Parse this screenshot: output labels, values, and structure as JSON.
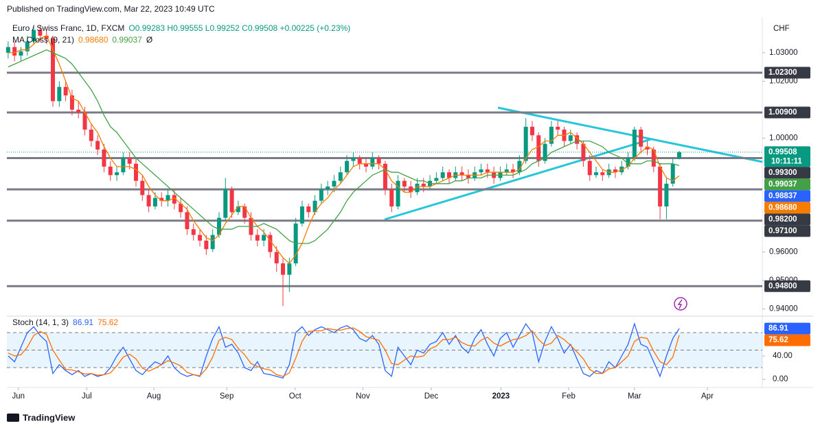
{
  "header": "Published on TradingView.com, Mar 22, 2023 10:49 UTC",
  "footer": "TradingView",
  "chart_data": [
    {
      "type": "candlestick",
      "title": "Euro / Swiss Franc, 1D, FXCM",
      "ohlc_text": "O0.99283 H0.99555 L0.99252 C0.99508 +0.00225 (+0.23%)",
      "axis_unit": "CHF",
      "overlay_title": "MA Cross (9, 21)",
      "overlay_icon": "Ø",
      "countdown": "10:11:11",
      "up_color": "#089981",
      "down_color": "#f23645",
      "xlim": [
        -0.2,
        118
      ],
      "ylim": [
        0.9377,
        1.0425
      ],
      "yticks": [
        {
          "value": 1.03,
          "label": "1.03000"
        },
        {
          "value": 1.02,
          "label": "1.02000"
        },
        {
          "value": 1.0,
          "label": "1.00000"
        },
        {
          "value": 0.96,
          "label": "0.96000"
        },
        {
          "value": 0.95,
          "label": "0.95000"
        },
        {
          "value": 0.94,
          "label": "0.94000"
        }
      ],
      "xticks": [
        {
          "value": 1.6,
          "label": "Jun"
        },
        {
          "value": 12.3,
          "label": "Jul"
        },
        {
          "value": 22.8,
          "label": "Aug"
        },
        {
          "value": 34.2,
          "label": "Sep"
        },
        {
          "value": 44.9,
          "label": "Oct"
        },
        {
          "value": 55.5,
          "label": "Nov"
        },
        {
          "value": 66.2,
          "label": "Dec"
        },
        {
          "value": 77.1,
          "label": "2023"
        },
        {
          "value": 87.7,
          "label": "Feb"
        },
        {
          "value": 98,
          "label": "Mar"
        },
        {
          "value": 109.4,
          "label": "Apr"
        }
      ],
      "levels": [
        {
          "value": 1.023,
          "label": "1.02300"
        },
        {
          "value": 1.009,
          "label": "1.00900"
        },
        {
          "value": 0.993,
          "label": "0.99300"
        },
        {
          "value": 0.982,
          "label": "0.98200"
        },
        {
          "value": 0.971,
          "label": "0.97100"
        },
        {
          "value": 0.948,
          "label": "0.94800"
        }
      ],
      "marker": {
        "value": 0.98837,
        "color": "#2962ff"
      },
      "ohlc": [
        [
          1.03,
          1.034,
          1.028,
          1.032
        ],
        [
          1.032,
          1.034,
          1.027,
          1.029
        ],
        [
          1.029,
          1.032,
          1.027,
          1.0305
        ],
        [
          1.0305,
          1.036,
          1.029,
          1.034
        ],
        [
          1.034,
          1.0395,
          1.033,
          1.038
        ],
        [
          1.038,
          1.0395,
          1.034,
          1.036
        ],
        [
          1.036,
          1.038,
          1.033,
          1.035
        ],
        [
          1.035,
          1.036,
          1.011,
          1.013
        ],
        [
          1.013,
          1.02,
          1.011,
          1.018
        ],
        [
          1.018,
          1.02,
          1.013,
          1.015
        ],
        [
          1.015,
          1.017,
          1.008,
          1.01
        ],
        [
          1.01,
          1.013,
          1.007,
          1.009
        ],
        [
          1.009,
          1.011,
          1.001,
          1.003
        ],
        [
          1.003,
          1.005,
          0.997,
          0.999
        ],
        [
          0.999,
          1.001,
          0.994,
          0.996
        ],
        [
          0.996,
          0.998,
          0.988,
          0.99
        ],
        [
          0.99,
          0.992,
          0.985,
          0.987
        ],
        [
          0.987,
          0.99,
          0.985,
          0.988
        ],
        [
          0.988,
          0.995,
          0.987,
          0.993
        ],
        [
          0.993,
          0.995,
          0.989,
          0.991
        ],
        [
          0.991,
          0.993,
          0.983,
          0.985
        ],
        [
          0.985,
          0.987,
          0.978,
          0.98
        ],
        [
          0.98,
          0.982,
          0.974,
          0.976
        ],
        [
          0.976,
          0.981,
          0.975,
          0.979
        ],
        [
          0.979,
          0.981,
          0.976,
          0.978
        ],
        [
          0.978,
          0.982,
          0.976,
          0.98
        ],
        [
          0.98,
          0.982,
          0.975,
          0.977
        ],
        [
          0.977,
          0.979,
          0.972,
          0.974
        ],
        [
          0.974,
          0.976,
          0.966,
          0.968
        ],
        [
          0.968,
          0.97,
          0.964,
          0.966
        ],
        [
          0.966,
          0.968,
          0.962,
          0.964
        ],
        [
          0.964,
          0.966,
          0.959,
          0.961
        ],
        [
          0.961,
          0.968,
          0.96,
          0.966
        ],
        [
          0.966,
          0.974,
          0.965,
          0.972
        ],
        [
          0.972,
          0.986,
          0.971,
          0.982
        ],
        [
          0.982,
          0.983,
          0.972,
          0.974
        ],
        [
          0.974,
          0.978,
          0.973,
          0.976
        ],
        [
          0.976,
          0.977,
          0.97,
          0.972
        ],
        [
          0.972,
          0.974,
          0.964,
          0.966
        ],
        [
          0.966,
          0.968,
          0.962,
          0.964
        ],
        [
          0.964,
          0.968,
          0.962,
          0.966
        ],
        [
          0.966,
          0.967,
          0.958,
          0.96
        ],
        [
          0.96,
          0.962,
          0.953,
          0.956
        ],
        [
          0.956,
          0.958,
          0.941,
          0.952
        ],
        [
          0.952,
          0.958,
          0.946,
          0.956
        ],
        [
          0.956,
          0.972,
          0.955,
          0.97
        ],
        [
          0.97,
          0.978,
          0.969,
          0.976
        ],
        [
          0.976,
          0.977,
          0.972,
          0.974
        ],
        [
          0.974,
          0.98,
          0.973,
          0.978
        ],
        [
          0.978,
          0.984,
          0.977,
          0.982
        ],
        [
          0.982,
          0.985,
          0.98,
          0.983
        ],
        [
          0.983,
          0.987,
          0.981,
          0.985
        ],
        [
          0.985,
          0.99,
          0.984,
          0.988
        ],
        [
          0.988,
          0.994,
          0.987,
          0.992
        ],
        [
          0.992,
          0.995,
          0.99,
          0.993
        ],
        [
          0.993,
          0.994,
          0.989,
          0.991
        ],
        [
          0.991,
          0.993,
          0.988,
          0.99
        ],
        [
          0.99,
          0.995,
          0.989,
          0.993
        ],
        [
          0.993,
          0.994,
          0.989,
          0.991
        ],
        [
          0.991,
          0.992,
          0.98,
          0.982
        ],
        [
          0.982,
          0.984,
          0.974,
          0.976
        ],
        [
          0.976,
          0.987,
          0.975,
          0.985
        ],
        [
          0.985,
          0.986,
          0.981,
          0.983
        ],
        [
          0.983,
          0.985,
          0.979,
          0.981
        ],
        [
          0.981,
          0.986,
          0.98,
          0.984
        ],
        [
          0.984,
          0.986,
          0.981,
          0.983
        ],
        [
          0.983,
          0.987,
          0.982,
          0.985
        ],
        [
          0.985,
          0.988,
          0.984,
          0.986
        ],
        [
          0.986,
          0.99,
          0.985,
          0.988
        ],
        [
          0.988,
          0.989,
          0.984,
          0.986
        ],
        [
          0.986,
          0.99,
          0.985,
          0.988
        ],
        [
          0.988,
          0.99,
          0.985,
          0.987
        ],
        [
          0.987,
          0.989,
          0.984,
          0.986
        ],
        [
          0.986,
          0.99,
          0.985,
          0.988
        ],
        [
          0.988,
          0.991,
          0.987,
          0.989
        ],
        [
          0.989,
          0.991,
          0.986,
          0.988
        ],
        [
          0.988,
          0.99,
          0.984,
          0.986
        ],
        [
          0.986,
          0.99,
          0.985,
          0.988
        ],
        [
          0.988,
          0.991,
          0.987,
          0.989
        ],
        [
          0.989,
          0.991,
          0.986,
          0.988
        ],
        [
          0.988,
          0.994,
          0.987,
          0.992
        ],
        [
          0.992,
          1.007,
          0.991,
          1.004
        ],
        [
          1.004,
          1.006,
          0.999,
          1.001
        ],
        [
          1.001,
          1.002,
          0.99,
          0.992
        ],
        [
          0.992,
          1.0,
          0.991,
          0.998
        ],
        [
          0.998,
          1.006,
          0.997,
          1.004
        ],
        [
          1.004,
          1.006,
          1.001,
          1.003
        ],
        [
          1.003,
          1.004,
          0.997,
          0.999
        ],
        [
          0.999,
          1.003,
          0.998,
          1.001
        ],
        [
          1.001,
          1.002,
          0.996,
          0.998
        ],
        [
          0.998,
          0.999,
          0.99,
          0.992
        ],
        [
          0.992,
          0.994,
          0.985,
          0.987
        ],
        [
          0.987,
          0.99,
          0.986,
          0.988
        ],
        [
          0.988,
          0.989,
          0.985,
          0.987
        ],
        [
          0.987,
          0.991,
          0.986,
          0.989
        ],
        [
          0.989,
          0.99,
          0.986,
          0.988
        ],
        [
          0.988,
          0.992,
          0.987,
          0.99
        ],
        [
          0.99,
          0.995,
          0.989,
          0.993
        ],
        [
          0.993,
          1.004,
          0.992,
          1.003
        ],
        [
          1.003,
          1.004,
          0.995,
          0.997
        ],
        [
          0.997,
          0.999,
          0.994,
          0.996
        ],
        [
          0.996,
          0.997,
          0.988,
          0.99
        ],
        [
          0.99,
          0.991,
          0.9715,
          0.976
        ],
        [
          0.976,
          0.986,
          0.9715,
          0.984
        ],
        [
          0.984,
          0.993,
          0.983,
          0.991
        ],
        [
          0.99283,
          0.99555,
          0.99252,
          0.99508
        ]
      ],
      "series": [
        {
          "color": "#f57c00",
          "value_label": "0.98680",
          "values": [
            1.03,
            1.03,
            1.031,
            1.031,
            1.033,
            1.035,
            1.036,
            1.031,
            1.026,
            1.02,
            1.014,
            1.013,
            1.009,
            1.005,
            1.002,
            0.997,
            0.993,
            0.99,
            0.99,
            0.99,
            0.989,
            0.987,
            0.983,
            0.98,
            0.978,
            0.978,
            0.979,
            0.977,
            0.975,
            0.971,
            0.968,
            0.965,
            0.964,
            0.966,
            0.97,
            0.973,
            0.976,
            0.976,
            0.972,
            0.969,
            0.967,
            0.964,
            0.961,
            0.958,
            0.956,
            0.959,
            0.963,
            0.969,
            0.974,
            0.977,
            0.979,
            0.982,
            0.984,
            0.987,
            0.99,
            0.991,
            0.991,
            0.991,
            0.991,
            0.989,
            0.985,
            0.983,
            0.981,
            0.981,
            0.983,
            0.983,
            0.983,
            0.984,
            0.985,
            0.986,
            0.987,
            0.987,
            0.987,
            0.987,
            0.987,
            0.988,
            0.988,
            0.988,
            0.988,
            0.988,
            0.989,
            0.993,
            0.996,
            0.997,
            0.999,
            0.999,
            1.001,
            1.001,
            1.002,
            1.0,
            0.998,
            0.995,
            0.992,
            0.989,
            0.988,
            0.988,
            0.989,
            0.99,
            0.993,
            0.995,
            0.997,
            0.996,
            0.99,
            0.986,
            0.985,
            0.9868
          ]
        },
        {
          "color": "#43a047",
          "value_label": "0.99037",
          "values": [
            1.025,
            1.026,
            1.027,
            1.028,
            1.029,
            1.03,
            1.031,
            1.03,
            1.029,
            1.028,
            1.026,
            1.023,
            1.02,
            1.017,
            1.013,
            1.008,
            1.004,
            1.002,
            0.999,
            0.996,
            0.993,
            0.991,
            0.989,
            0.987,
            0.985,
            0.983,
            0.981,
            0.979,
            0.977,
            0.975,
            0.973,
            0.971,
            0.969,
            0.968,
            0.968,
            0.968,
            0.969,
            0.969,
            0.969,
            0.969,
            0.97,
            0.969,
            0.968,
            0.966,
            0.964,
            0.963,
            0.963,
            0.963,
            0.964,
            0.966,
            0.968,
            0.971,
            0.974,
            0.978,
            0.981,
            0.983,
            0.985,
            0.987,
            0.988,
            0.989,
            0.988,
            0.988,
            0.987,
            0.986,
            0.985,
            0.985,
            0.984,
            0.984,
            0.984,
            0.984,
            0.985,
            0.985,
            0.986,
            0.986,
            0.986,
            0.987,
            0.987,
            0.987,
            0.987,
            0.987,
            0.988,
            0.989,
            0.991,
            0.992,
            0.993,
            0.995,
            0.996,
            0.997,
            0.998,
            0.999,
            0.999,
            0.999,
            0.998,
            0.997,
            0.995,
            0.994,
            0.993,
            0.991,
            0.991,
            0.991,
            0.992,
            0.992,
            0.991,
            0.991,
            0.991,
            0.99037
          ]
        }
      ]
    },
    {
      "type": "line",
      "title": "Stoch (14, 1, 3)",
      "ylim": [
        -14,
        107
      ],
      "yticks": [
        {
          "value": 40,
          "label": "40.00"
        },
        {
          "value": 0,
          "label": "0.00"
        }
      ],
      "bands": [
        80,
        50,
        20
      ],
      "series": [
        {
          "color": "#2962ff",
          "values": [
            40,
            30,
            55,
            80,
            90,
            75,
            65,
            10,
            25,
            15,
            8,
            15,
            5,
            10,
            5,
            8,
            20,
            40,
            55,
            35,
            15,
            8,
            20,
            30,
            25,
            40,
            20,
            10,
            5,
            8,
            5,
            40,
            70,
            90,
            55,
            60,
            45,
            20,
            15,
            30,
            10,
            8,
            5,
            2,
            25,
            80,
            90,
            75,
            85,
            90,
            85,
            80,
            88,
            92,
            85,
            70,
            65,
            75,
            60,
            15,
            5,
            55,
            40,
            25,
            50,
            45,
            60,
            65,
            80,
            60,
            75,
            55,
            45,
            70,
            85,
            60,
            40,
            70,
            80,
            55,
            75,
            95,
            80,
            30,
            65,
            90,
            70,
            45,
            60,
            35,
            10,
            5,
            15,
            10,
            30,
            20,
            40,
            60,
            95,
            60,
            55,
            30,
            5,
            40,
            70,
            86.91
          ]
        },
        {
          "color": "#ff6d00",
          "values": [
            45,
            40,
            42,
            55,
            75,
            82,
            77,
            50,
            33,
            17,
            16,
            13,
            9,
            10,
            7,
            8,
            11,
            23,
            38,
            43,
            35,
            19,
            14,
            19,
            25,
            32,
            28,
            23,
            12,
            8,
            6,
            18,
            38,
            67,
            72,
            68,
            53,
            42,
            27,
            22,
            18,
            16,
            8,
            5,
            11,
            36,
            65,
            82,
            83,
            83,
            87,
            85,
            84,
            87,
            88,
            82,
            73,
            70,
            67,
            50,
            27,
            25,
            33,
            40,
            38,
            40,
            52,
            57,
            68,
            68,
            72,
            63,
            58,
            57,
            67,
            72,
            62,
            57,
            63,
            68,
            70,
            75,
            83,
            68,
            58,
            62,
            75,
            68,
            58,
            47,
            35,
            17,
            10,
            10,
            18,
            20,
            30,
            40,
            65,
            72,
            70,
            48,
            30,
            25,
            38,
            75.62
          ]
        }
      ]
    }
  ]
}
